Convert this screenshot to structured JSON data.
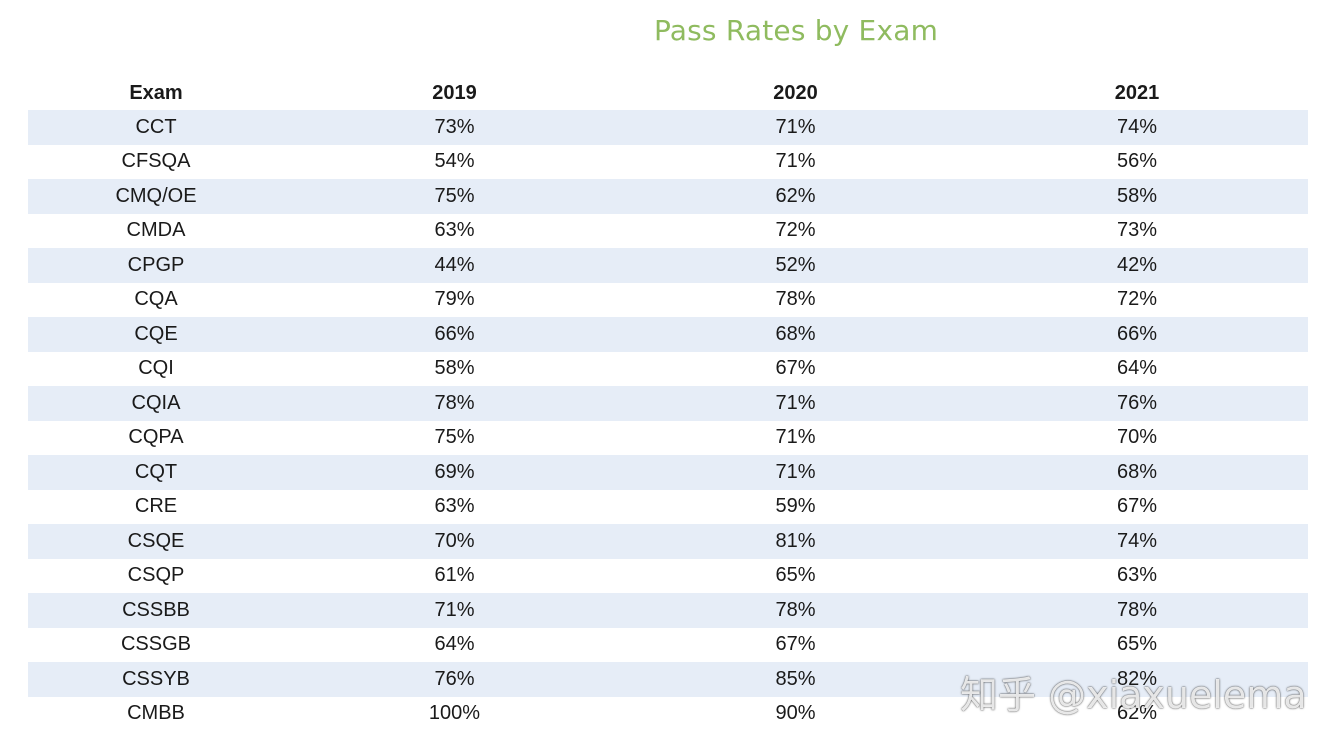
{
  "chart_data": {
    "type": "table",
    "title": "Pass Rates by Exam",
    "columns": [
      "Exam",
      "2019",
      "2020",
      "2021"
    ],
    "rows": [
      [
        "CCT",
        "73%",
        "71%",
        "74%"
      ],
      [
        "CFSQA",
        "54%",
        "71%",
        "56%"
      ],
      [
        "CMQ/OE",
        "75%",
        "62%",
        "58%"
      ],
      [
        "CMDA",
        "63%",
        "72%",
        "73%"
      ],
      [
        "CPGP",
        "44%",
        "52%",
        "42%"
      ],
      [
        "CQA",
        "79%",
        "78%",
        "72%"
      ],
      [
        "CQE",
        "66%",
        "68%",
        "66%"
      ],
      [
        "CQI",
        "58%",
        "67%",
        "64%"
      ],
      [
        "CQIA",
        "78%",
        "71%",
        "76%"
      ],
      [
        "CQPA",
        "75%",
        "71%",
        "70%"
      ],
      [
        "CQT",
        "69%",
        "71%",
        "68%"
      ],
      [
        "CRE",
        "63%",
        "59%",
        "67%"
      ],
      [
        "CSQE",
        "70%",
        "81%",
        "74%"
      ],
      [
        "CSQP",
        "61%",
        "65%",
        "63%"
      ],
      [
        "CSSBB",
        "71%",
        "78%",
        "78%"
      ],
      [
        "CSSGB",
        "64%",
        "67%",
        "65%"
      ],
      [
        "CSSYB",
        "76%",
        "85%",
        "82%"
      ],
      [
        "CMBB",
        "100%",
        "90%",
        "62%"
      ]
    ]
  },
  "colors": {
    "title": "#8fbb5f",
    "row_stripe": "#e6edf7",
    "text": "#1a1a1a"
  },
  "watermark": "知乎 @xiaxuelema"
}
